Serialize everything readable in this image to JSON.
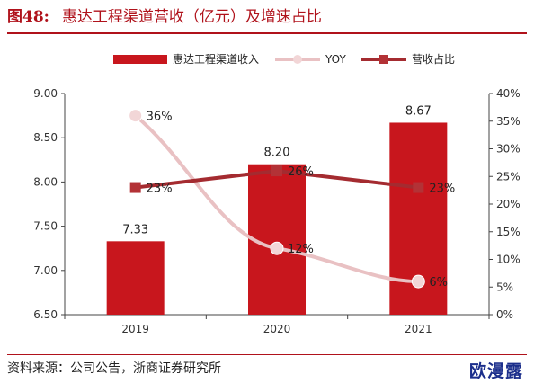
{
  "header": {
    "figure_no": "图48:",
    "title": "惠达工程渠道营收（亿元）及增速占比"
  },
  "source": "资料来源：公司公告，浙商证券研究所",
  "watermark": "欧漫露",
  "colors": {
    "bar": "#c8161d",
    "yoy_line": "#e9c1c3",
    "yoy_marker": "#f2d6d7",
    "share_line": "#a42b30",
    "share_marker": "#b33236",
    "accent": "#b0121b"
  },
  "chart_data": {
    "type": "bar",
    "categories": [
      "2019",
      "2020",
      "2021"
    ],
    "series": [
      {
        "name": "惠达工程渠道收入",
        "type": "bar",
        "axis": "left",
        "values": [
          7.33,
          8.2,
          8.67
        ],
        "labels": [
          "7.33",
          "8.20",
          "8.67"
        ]
      },
      {
        "name": "YOY",
        "type": "line",
        "axis": "right",
        "values": [
          36,
          12,
          6
        ],
        "labels": [
          "36%",
          "12%",
          "6%"
        ]
      },
      {
        "name": "营收占比",
        "type": "line",
        "axis": "right",
        "values": [
          23,
          26,
          23
        ],
        "labels": [
          "23%",
          "26%",
          "23%"
        ]
      }
    ],
    "y_left": {
      "min": 6.5,
      "max": 9.0,
      "ticks": [
        "6.50",
        "7.00",
        "7.50",
        "8.00",
        "8.50",
        "9.00"
      ],
      "tick_values": [
        6.5,
        7.0,
        7.5,
        8.0,
        8.5,
        9.0
      ]
    },
    "y_right": {
      "min": 0,
      "max": 40,
      "ticks": [
        "0%",
        "5%",
        "10%",
        "15%",
        "20%",
        "25%",
        "30%",
        "35%",
        "40%"
      ],
      "tick_values": [
        0,
        5,
        10,
        15,
        20,
        25,
        30,
        35,
        40
      ]
    },
    "grid": false,
    "legend": "top"
  }
}
